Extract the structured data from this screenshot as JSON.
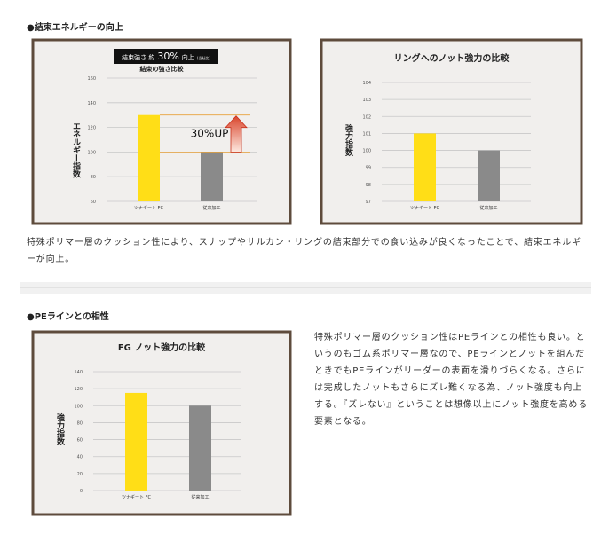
{
  "sections": [
    {
      "heading": "●結束エネルギーの向上",
      "paragraph": "特殊ポリマー層のクッション性により、スナップやサルカン・リングの結束部分での食い込みが良くなったことで、結束エネルギーが向上。"
    },
    {
      "heading": "●PEラインとの相性",
      "paragraph": "特殊ポリマー層のクッション性はPEラインとの相性も良い。というのもゴム系ポリマー層なので、PEラインとノットを組んだときでもPEラインがリーダーの表面を滑りづらくなる。さらには完成したノットもさらにズレ難くなる為、ノット強度も向上する。『ズレない』ということは想像以上にノット強度を高める要素となる。"
    }
  ],
  "chart_data": [
    {
      "type": "bar",
      "title": "結束の強さ比較",
      "badge": [
        "結束強さ 約",
        "30%",
        "向上",
        "(当社比)"
      ],
      "annotation": "30%UP",
      "y_label": "エネルギー指数",
      "categories": [
        "ツナギート FC",
        "従来加工"
      ],
      "values": [
        130,
        100
      ],
      "colors": [
        "#ffde17",
        "#8a8a8a"
      ],
      "ylim": [
        60,
        160
      ],
      "yticks": [
        60,
        80,
        100,
        120,
        140,
        160
      ],
      "grid": true
    },
    {
      "type": "bar",
      "title": "リングへのノット強力の比較",
      "y_label": "強力指数",
      "categories": [
        "ツナギート FC",
        "従来加工"
      ],
      "values": [
        101,
        100
      ],
      "colors": [
        "#ffde17",
        "#8a8a8a"
      ],
      "ylim": [
        97,
        104
      ],
      "yticks": [
        97,
        98,
        99,
        100,
        101,
        102,
        103,
        104
      ],
      "grid": true
    },
    {
      "type": "bar",
      "title": "FG ノット強力の比較",
      "y_label": "強力指数",
      "categories": [
        "ツナギート FC",
        "従来加工"
      ],
      "values": [
        115,
        100
      ],
      "colors": [
        "#ffde17",
        "#8a8a8a"
      ],
      "ylim": [
        0,
        140
      ],
      "yticks": [
        0,
        20,
        40,
        60,
        80,
        100,
        120,
        140
      ],
      "grid": true
    }
  ]
}
